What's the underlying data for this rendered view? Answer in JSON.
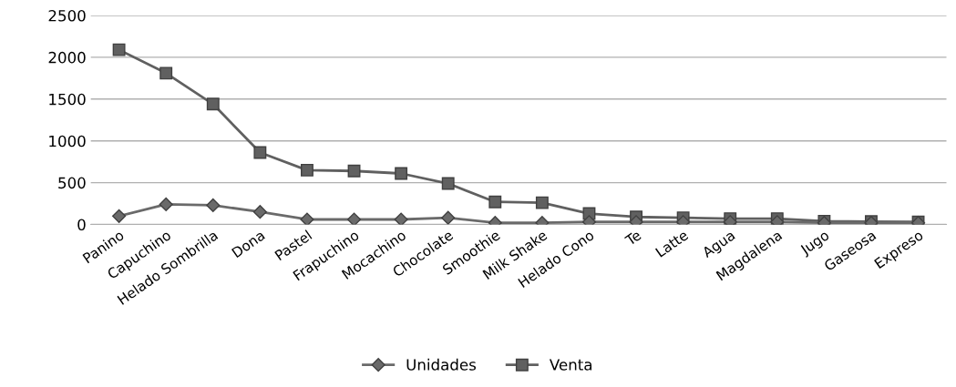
{
  "chart_data": {
    "type": "line",
    "categories": [
      "Panino",
      "Capuchino",
      "Helado Sombrilla",
      "Dona",
      "Pastel",
      "Frapuchino",
      "Mocachino",
      "Chocolate",
      "Smoothie",
      "Milk Shake",
      "Helado Cono",
      "Te",
      "Latte",
      "Agua",
      "Magdalena",
      "Jugo",
      "Gaseosa",
      "Expreso"
    ],
    "series": [
      {
        "name": "Unidades",
        "color": "#6a6a6a",
        "marker": "diamond",
        "values": [
          100,
          240,
          230,
          150,
          60,
          60,
          60,
          80,
          20,
          20,
          30,
          30,
          30,
          30,
          30,
          20,
          20,
          20
        ]
      },
      {
        "name": "Venta",
        "color": "#606060",
        "marker": "square",
        "values": [
          2090,
          1810,
          1440,
          860,
          650,
          640,
          610,
          490,
          270,
          260,
          130,
          90,
          80,
          70,
          70,
          40,
          35,
          30
        ]
      }
    ],
    "ylim": [
      0,
      2500
    ],
    "yticks": [
      0,
      500,
      1000,
      1500,
      2000,
      2500
    ],
    "grid": "y",
    "legend": "bottom"
  }
}
